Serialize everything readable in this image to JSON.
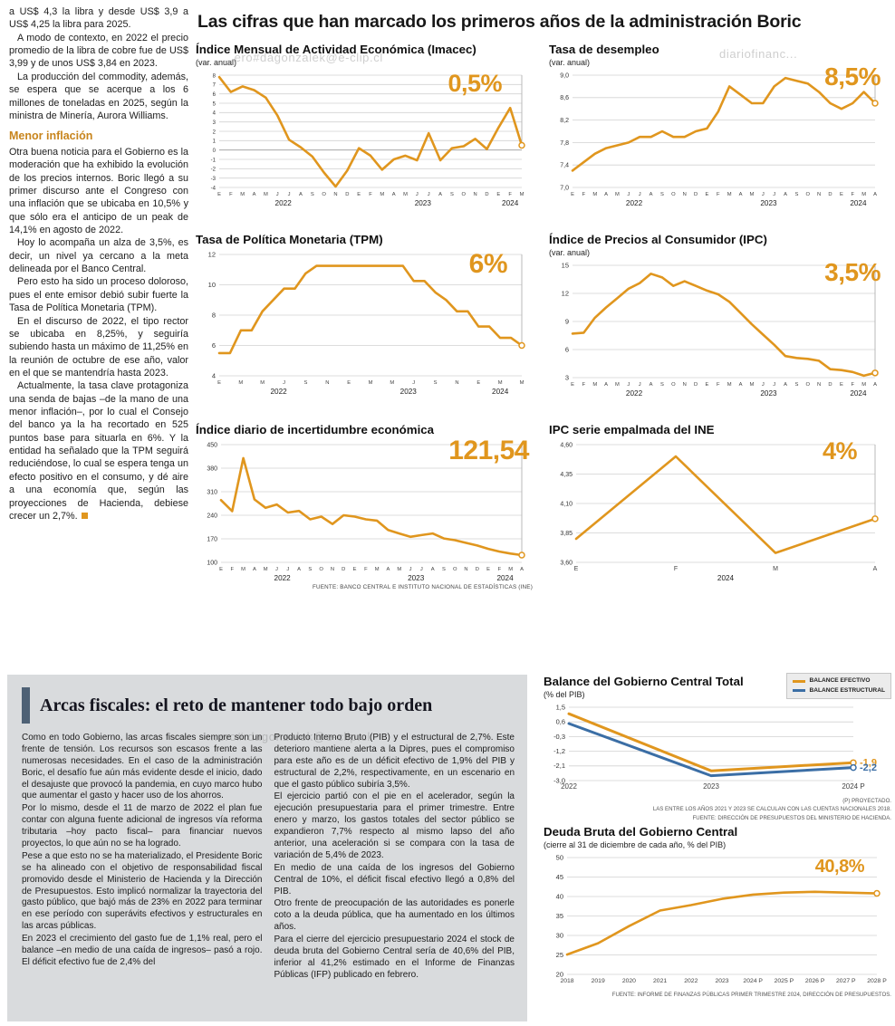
{
  "main_title": "Las cifras que han marcado los primeros años de la administración Boric",
  "watermarks": {
    "wm1": "...ero#dagonzalek@e-clip.cl",
    "wm2": "diariofinanc...",
    "wm3": "...ero#.dagonzalek@e-clip.cl"
  },
  "left_article": {
    "intro_paragraphs": [
      "a US$ 4,3 la libra y desde US$ 3,9 a US$ 4,25 la libra para 2025.",
      "A modo de contexto, en 2022 el precio promedio de la libra de cobre fue de US$ 3,99 y de unos US$ 3,84 en 2023.",
      "La producción del commodity, además, se espera que se acerque a los 6 millones de toneladas en 2025, según la ministra de Minería, Aurora Williams."
    ],
    "heading": "Menor inflación",
    "body_paragraphs": [
      "Otra buena noticia para el Gobierno es la moderación que ha exhibido la evolución de los precios internos. Boric llegó a su primer discurso ante el Congreso con una inflación que se ubicaba en 10,5% y que sólo era el anticipo de un peak de 14,1% en agosto de 2022.",
      "Hoy lo acompaña un alza de 3,5%, es decir, un nivel ya cercano a la meta delineada por el Banco Central.",
      "Pero esto ha sido un proceso doloroso, pues el ente emisor debió subir fuerte la Tasa de Política Monetaria (TPM).",
      "En el discurso de 2022, el tipo rector se ubicaba en 8,25%, y seguiría subiendo hasta un máximo de 11,25% en la reunión de octubre de ese año, valor en el que se mantendría hasta 2023.",
      "Actualmente, la tasa clave protagoniza una senda de bajas –de la mano de una menor inflación–, por lo cual el Consejo del banco ya la ha recortado en 525 puntos base para situarla en 6%. Y la entidad ha señalado que la TPM seguirá reduciéndose, lo cual se espera tenga un efecto positivo en el consumo, y dé aire a una economía que, según las proyecciones de Hacienda, debiese crecer un 2,7%."
    ]
  },
  "charts_source": "FUENTE: BANCO CENTRAL E INSTITUTO NACIONAL DE ESTADÍSTICAS (INE)",
  "fiscal_panel": {
    "title": "Arcas fiscales: el reto de mantener todo bajo orden",
    "col1": [
      "Como en todo Gobierno, las arcas fiscales siempre son un frente de tensión. Los recursos son escasos frente a las numerosas necesidades. En el caso de la administración Boric, el desafío fue aún más evidente desde el inicio, dado el desajuste que provocó la pandemia, en cuyo marco hubo que aumentar el gasto y hacer uso de los ahorros.",
      "Por lo mismo, desde el 11 de marzo de 2022 el plan fue contar con alguna fuente adicional de ingresos vía reforma tributaria –hoy pacto fiscal– para financiar nuevos proyectos, lo que aún no se ha logrado.",
      "Pese a que esto no se ha materializado, el Presidente Boric se ha alineado con el objetivo de responsabilidad fiscal promovido desde el Ministerio de Hacienda y la Dirección de Presupuestos. Esto implicó normalizar la trayectoria del gasto público, que bajó más de 23% en 2022 para terminar en ese período con superávits efectivos y estructurales en las arcas públicas.",
      "En 2023 el crecimiento del gasto fue de 1,1% real, pero el balance –en medio de una caída de ingresos– pasó a rojo. El déficit efectivo fue de 2,4% del"
    ],
    "col2": [
      "Producto Interno Bruto (PIB) y el estructural de 2,7%. Este deterioro mantiene alerta a la Dipres, pues el compromiso para este año es de un déficit efectivo de 1,9% del PIB y estructural de 2,2%, respectivamente, en un escenario en que el gasto público subiría 3,5%.",
      "El ejercicio partió con el pie en el acelerador, según la ejecución presupuestaria para el primer trimestre. Entre enero y marzo, los gastos totales del sector público se expandieron 7,7% respecto al mismo lapso del año anterior, una aceleración si se compara con la tasa de variación de 5,4% de 2023.",
      "En medio de una caída de los ingresos del Gobierno Central de 10%, el déficit fiscal efectivo llegó a 0,8% del PIB.",
      "Otro frente de preocupación de las autoridades es ponerle coto a la deuda pública, que ha aumentado en los últimos años.",
      "Para el cierre del ejercicio presupuestario 2024 el stock de deuda bruta del Gobierno Central sería de 40,6% del PIB, inferior al 41,2% estimado en el Informe de Finanzas Públicas (IFP) publicado en febrero."
    ]
  },
  "colors": {
    "accent_orange": "#e0961e",
    "accent_blue": "#3b6ea5",
    "panel_gray": "#d9dbdd"
  },
  "chart_data": [
    {
      "id": "imacec",
      "type": "line",
      "title": "Índice Mensual de Actividad Económica (Imacec)",
      "subtitle": "(var. anual)",
      "big_value": "0,5%",
      "ymin": -4,
      "ymax": 8,
      "endline": true,
      "dark_zero": true,
      "yfs": 6,
      "yticks": [
        {
          "v": 8,
          "l": "8"
        },
        {
          "v": 7,
          "l": "7"
        },
        {
          "v": 6,
          "l": "6"
        },
        {
          "v": 5,
          "l": "5"
        },
        {
          "v": 4,
          "l": "4"
        },
        {
          "v": 3,
          "l": "3"
        },
        {
          "v": 2,
          "l": "2"
        },
        {
          "v": 1,
          "l": "1"
        },
        {
          "v": 0,
          "l": "0"
        },
        {
          "v": -1,
          "l": "-1"
        },
        {
          "v": -2,
          "l": "-2"
        },
        {
          "v": -3,
          "l": "-3"
        },
        {
          "v": -4,
          "l": "-4"
        }
      ],
      "xlabels": [
        "E",
        "F",
        "M",
        "A",
        "M",
        "J",
        "J",
        "A",
        "S",
        "O",
        "N",
        "D",
        "E",
        "F",
        "M",
        "A",
        "M",
        "J",
        "J",
        "A",
        "S",
        "O",
        "N",
        "D",
        "E",
        "F",
        "M"
      ],
      "years": [
        {
          "label": "2022",
          "start": 0,
          "end": 11
        },
        {
          "label": "2023",
          "start": 12,
          "end": 23
        },
        {
          "label": "2024",
          "start": 24,
          "end": 26
        }
      ],
      "series": [
        {
          "name": "Imacec",
          "color": "#e0961e",
          "values": [
            7.8,
            6.2,
            6.8,
            6.4,
            5.6,
            3.7,
            1.1,
            0.3,
            -0.7,
            -2.4,
            -3.9,
            -2.2,
            0.2,
            -0.6,
            -2.1,
            -1.0,
            -0.6,
            -1.1,
            1.8,
            -1.1,
            0.2,
            0.4,
            1.2,
            0.1,
            2.4,
            4.5,
            0.5
          ]
        }
      ]
    },
    {
      "id": "desempleo",
      "type": "line",
      "title": "Tasa de desempleo",
      "subtitle": "(var. anual)",
      "big_value": "8,5%",
      "ymin": 7.0,
      "ymax": 9.0,
      "endline": true,
      "yticks": [
        {
          "v": 9.0,
          "l": "9,0"
        },
        {
          "v": 8.6,
          "l": "8,6"
        },
        {
          "v": 8.2,
          "l": "8,2"
        },
        {
          "v": 7.8,
          "l": "7,8"
        },
        {
          "v": 7.4,
          "l": "7,4"
        },
        {
          "v": 7.0,
          "l": "7,0"
        }
      ],
      "xlabels": [
        "E",
        "F",
        "M",
        "A",
        "M",
        "J",
        "J",
        "A",
        "S",
        "O",
        "N",
        "D",
        "E",
        "F",
        "M",
        "A",
        "M",
        "J",
        "J",
        "A",
        "S",
        "O",
        "N",
        "D",
        "E",
        "F",
        "M",
        "A"
      ],
      "years": [
        {
          "label": "2022",
          "start": 0,
          "end": 11
        },
        {
          "label": "2023",
          "start": 12,
          "end": 23
        },
        {
          "label": "2024",
          "start": 24,
          "end": 27
        }
      ],
      "series": [
        {
          "name": "Tasa de desempleo",
          "color": "#e0961e",
          "values": [
            7.3,
            7.45,
            7.6,
            7.7,
            7.75,
            7.8,
            7.9,
            7.9,
            8.0,
            7.9,
            7.9,
            8.0,
            8.05,
            8.35,
            8.8,
            8.65,
            8.5,
            8.5,
            8.8,
            8.95,
            8.9,
            8.85,
            8.7,
            8.5,
            8.4,
            8.5,
            8.7,
            8.5
          ]
        }
      ]
    },
    {
      "id": "tpm",
      "type": "line",
      "title": "Tasa de Política Monetaria (TPM)",
      "big_value": "6%",
      "ymin": 4,
      "ymax": 12,
      "endline": true,
      "yfs": 7.5,
      "yticks": [
        {
          "v": 12,
          "l": "12"
        },
        {
          "v": 10,
          "l": "10"
        },
        {
          "v": 8,
          "l": "8"
        },
        {
          "v": 6,
          "l": "6"
        },
        {
          "v": 4,
          "l": "4"
        }
      ],
      "xlabels": [
        "E",
        "",
        "M",
        "",
        "M",
        "",
        "J",
        "",
        "S",
        "",
        "N",
        "",
        "E",
        "",
        "M",
        "",
        "M",
        "",
        "J",
        "",
        "S",
        "",
        "N",
        "",
        "E",
        "",
        "M",
        "",
        "M"
      ],
      "years": [
        {
          "label": "2022",
          "start": 0,
          "end": 11
        },
        {
          "label": "2023",
          "start": 12,
          "end": 23
        },
        {
          "label": "2024",
          "start": 24,
          "end": 28
        }
      ],
      "series": [
        {
          "name": "TPM",
          "color": "#e0961e",
          "values": [
            5.5,
            5.5,
            7.0,
            7.0,
            8.25,
            9.0,
            9.75,
            9.75,
            10.75,
            11.25,
            11.25,
            11.25,
            11.25,
            11.25,
            11.25,
            11.25,
            11.25,
            11.25,
            10.25,
            10.25,
            9.5,
            9.0,
            8.25,
            8.25,
            7.25,
            7.25,
            6.5,
            6.5,
            6.0
          ]
        }
      ]
    },
    {
      "id": "ipc",
      "type": "line",
      "title": "Índice de Precios al Consumidor (IPC)",
      "subtitle": "(var. anual)",
      "big_value": "3,5%",
      "ymin": 3,
      "ymax": 15,
      "endline": true,
      "yfs": 7.5,
      "yticks": [
        {
          "v": 15,
          "l": "15"
        },
        {
          "v": 12,
          "l": "12"
        },
        {
          "v": 9,
          "l": "9"
        },
        {
          "v": 6,
          "l": "6"
        },
        {
          "v": 3,
          "l": "3"
        }
      ],
      "xlabels": [
        "E",
        "F",
        "M",
        "A",
        "M",
        "J",
        "J",
        "A",
        "S",
        "O",
        "N",
        "D",
        "E",
        "F",
        "M",
        "A",
        "M",
        "J",
        "J",
        "A",
        "S",
        "O",
        "N",
        "D",
        "E",
        "F",
        "M",
        "A"
      ],
      "years": [
        {
          "label": "2022",
          "start": 0,
          "end": 11
        },
        {
          "label": "2023",
          "start": 12,
          "end": 23
        },
        {
          "label": "2024",
          "start": 24,
          "end": 27
        }
      ],
      "series": [
        {
          "name": "IPC",
          "color": "#e0961e",
          "values": [
            7.7,
            7.8,
            9.4,
            10.5,
            11.5,
            12.5,
            13.1,
            14.1,
            13.7,
            12.8,
            13.3,
            12.8,
            12.3,
            11.9,
            11.1,
            9.9,
            8.7,
            7.6,
            6.5,
            5.3,
            5.1,
            5.0,
            4.8,
            3.9,
            3.8,
            3.6,
            3.2,
            3.5
          ]
        }
      ]
    },
    {
      "id": "incertidumbre",
      "type": "line",
      "title": "Índice diario de incertidumbre económica",
      "big_value": "121,54",
      "ymin": 100,
      "ymax": 450,
      "endline": true,
      "padL": 28,
      "yfs": 7,
      "yticks": [
        {
          "v": 450,
          "l": "450"
        },
        {
          "v": 380,
          "l": "380"
        },
        {
          "v": 310,
          "l": "310"
        },
        {
          "v": 240,
          "l": "240"
        },
        {
          "v": 170,
          "l": "170"
        },
        {
          "v": 100,
          "l": "100"
        }
      ],
      "xlabels": [
        "E",
        "F",
        "M",
        "A",
        "M",
        "J",
        "J",
        "A",
        "S",
        "O",
        "N",
        "D",
        "E",
        "F",
        "M",
        "A",
        "M",
        "J",
        "J",
        "A",
        "S",
        "O",
        "N",
        "D",
        "E",
        "F",
        "M",
        "A"
      ],
      "years": [
        {
          "label": "2022",
          "start": 0,
          "end": 11
        },
        {
          "label": "2023",
          "start": 12,
          "end": 23
        },
        {
          "label": "2024",
          "start": 24,
          "end": 27
        }
      ],
      "series": [
        {
          "name": "Incertidumbre económica",
          "color": "#e0961e",
          "values": [
            285,
            252,
            410,
            287,
            262,
            272,
            248,
            253,
            228,
            236,
            214,
            240,
            236,
            228,
            224,
            196,
            186,
            176,
            181,
            186,
            171,
            166,
            158,
            150,
            140,
            132,
            126,
            121.54
          ]
        }
      ]
    },
    {
      "id": "ipcserie",
      "type": "line",
      "title": "IPC serie empalmada del INE",
      "big_value": "4%",
      "ymin": 3.6,
      "ymax": 4.6,
      "endline": true,
      "padL": 30,
      "xfs": 7,
      "yticks": [
        {
          "v": 4.6,
          "l": "4,60"
        },
        {
          "v": 4.35,
          "l": "4,35"
        },
        {
          "v": 4.1,
          "l": "4,10"
        },
        {
          "v": 3.85,
          "l": "3,85"
        },
        {
          "v": 3.6,
          "l": "3,60"
        }
      ],
      "xlabels": [
        "E",
        "F",
        "M",
        "A"
      ],
      "years": [
        {
          "label": "2024",
          "start": 0,
          "end": 3
        }
      ],
      "series": [
        {
          "name": "IPC serie empalmada",
          "color": "#e0961e",
          "values": [
            3.8,
            4.5,
            3.68,
            3.97
          ]
        }
      ]
    },
    {
      "id": "balance",
      "type": "line",
      "title": "Balance del Gobierno Central Total",
      "subtitle": "(% del PIB)",
      "ymin": -3.0,
      "ymax": 1.5,
      "padL": 28,
      "padR": 42,
      "padB": 15,
      "xfs": 8,
      "yfs": 7.5,
      "yticks": [
        {
          "v": 1.5,
          "l": "1,5"
        },
        {
          "v": 0.6,
          "l": "0,6"
        },
        {
          "v": -0.3,
          "l": "-0,3"
        },
        {
          "v": -1.2,
          "l": "-1,2"
        },
        {
          "v": -2.1,
          "l": "-2,1"
        },
        {
          "v": -3.0,
          "l": "-3,0"
        }
      ],
      "xlabels": [
        "2022",
        "2023",
        "2024 P"
      ],
      "series": [
        {
          "name": "BALANCE EFECTIVO",
          "color": "#e0961e",
          "width": 3,
          "end_label": "-1,9",
          "values": [
            1.1,
            -2.4,
            -1.9
          ]
        },
        {
          "name": "BALANCE ESTRUCTURAL",
          "color": "#3b6ea5",
          "width": 3,
          "end_label": "-2,2",
          "values": [
            0.5,
            -2.7,
            -2.2
          ]
        }
      ],
      "footnotes": [
        "(P) PROYECTADO.",
        "LAS ENTRE LOS AÑOS 2021 Y 2023 SE CALCULAN  CON LAS CUENTAS NACIONALES 2018.",
        "FUENTE: DIRECCIÓN DE PRESUPUESTOS DEL MINISTERIO DE HACIENDA."
      ]
    },
    {
      "id": "deuda",
      "type": "line",
      "title": "Deuda Bruta del Gobierno Central",
      "subtitle": "(cierre al 31 de diciembre de cada año, % del PIB)",
      "big_value": "40,8%",
      "ymin": 20,
      "ymax": 50,
      "padL": 26,
      "padR": 16,
      "padB": 15,
      "xfs": 6.8,
      "yfs": 7.5,
      "yticks": [
        {
          "v": 50,
          "l": "50"
        },
        {
          "v": 45,
          "l": "45"
        },
        {
          "v": 40,
          "l": "40"
        },
        {
          "v": 35,
          "l": "35"
        },
        {
          "v": 30,
          "l": "30"
        },
        {
          "v": 25,
          "l": "25"
        },
        {
          "v": 20,
          "l": "20"
        }
      ],
      "xlabels": [
        "2018",
        "2019",
        "2020",
        "2021",
        "2022",
        "2023",
        "2024 P",
        "2025 P",
        "2026 P",
        "2027 P",
        "2028 P"
      ],
      "series": [
        {
          "name": "Deuda bruta",
          "color": "#e0961e",
          "width": 2.6,
          "values": [
            25.1,
            28.0,
            32.4,
            36.4,
            37.8,
            39.4,
            40.5,
            41.0,
            41.2,
            41.0,
            40.8
          ]
        }
      ],
      "footnotes": [
        "FUENTE: INFORME DE FINANZAS PÚBLICAS PRIMER TRIMESTRE 2024, DIRECCIÓN DE PRESUPUESTOS."
      ]
    }
  ]
}
